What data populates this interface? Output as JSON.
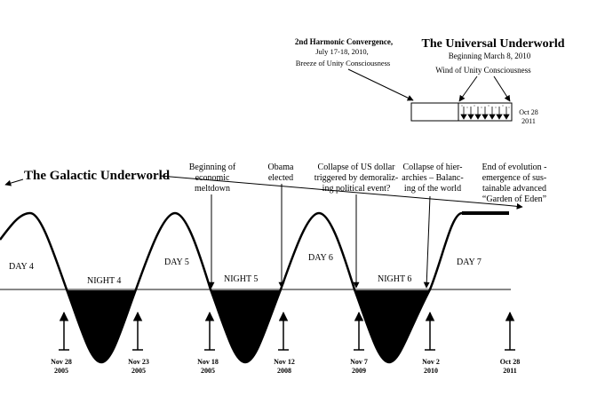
{
  "galactic_title": "The Galactic Underworld",
  "universal": {
    "title": "The Universal Underworld",
    "beginning": "Beginning March 8, 2010",
    "wind": "Wind of Unity Consciousness",
    "end_date_line1": "Oct 28",
    "end_date_line2": "2011"
  },
  "harmonic": {
    "title": "2nd Harmonic Convergence,",
    "dates": "July 17-18, 2010,",
    "breeze": "Breeze of Unity Consciousness"
  },
  "phases": {
    "day4": "DAY 4",
    "night4": "NIGHT  4",
    "day5": "DAY 5",
    "night5": "NIGHT  5",
    "day6": "DAY 6",
    "night6": "NIGHT  6",
    "day7": "DAY 7"
  },
  "night4_overlay": "270",
  "events": {
    "meltdown": [
      "Beginning of",
      "economic",
      "meltdown"
    ],
    "obama": [
      "Obama",
      "elected"
    ],
    "collapse_dollar": [
      "Collapse  of  US dollar",
      "triggered by demoraliz-",
      "ing political event?"
    ],
    "collapse_hier": [
      "Collapse of  hier-",
      "archies – Balanc-",
      "ing of the world"
    ],
    "end_evolution": [
      "End of evolution -",
      "emergence of sus-",
      "tainable advanced",
      "“Garden of Eden”"
    ]
  },
  "dates": [
    {
      "line1": "Nov 28",
      "line2": "2005"
    },
    {
      "line1": "Nov 23",
      "line2": "2005"
    },
    {
      "line1": "Nov 18",
      "line2": "2005"
    },
    {
      "line1": "Nov 12",
      "line2": "2008"
    },
    {
      "line1": "Nov 7",
      "line2": "2009"
    },
    {
      "line1": "Nov 2",
      "line2": "2010"
    },
    {
      "line1": "Oct 28",
      "line2": "2011"
    }
  ]
}
